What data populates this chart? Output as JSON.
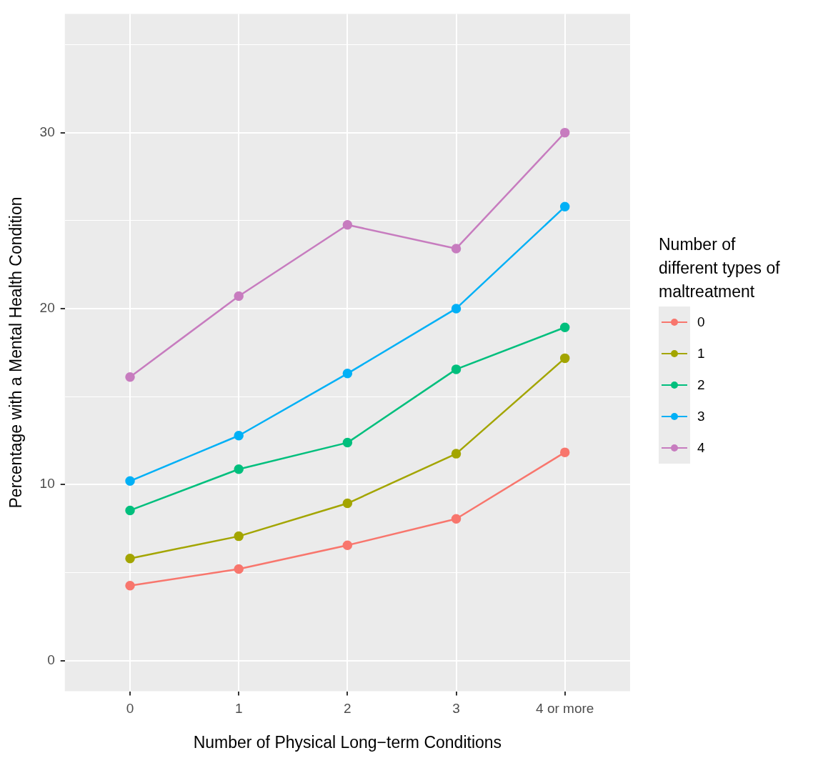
{
  "chart_data": {
    "type": "line",
    "xlabel": "Number of Physical Long−term Conditions",
    "ylabel": "Percentage with a Mental Health Condition",
    "legend_title": "Number of\ndifferent types of\nmaltreatment",
    "categories": [
      "0",
      "1",
      "2",
      "3",
      "4 or more"
    ],
    "series": [
      {
        "name": "0",
        "color": "#f8766d",
        "values": [
          4.25,
          5.2,
          6.55,
          8.05,
          11.83
        ]
      },
      {
        "name": "1",
        "color": "#a3a500",
        "values": [
          5.8,
          7.06,
          8.93,
          11.75,
          17.18
        ]
      },
      {
        "name": "2",
        "color": "#00bf7d",
        "values": [
          8.53,
          10.87,
          12.38,
          16.55,
          18.93
        ]
      },
      {
        "name": "3",
        "color": "#00b0f6",
        "values": [
          10.2,
          12.78,
          16.31,
          20.0,
          25.79
        ]
      },
      {
        "name": "4",
        "color": "#c77cbf",
        "values": [
          16.11,
          20.71,
          24.76,
          23.41,
          30.0
        ]
      }
    ],
    "ylim": [
      -1.75,
      36.75
    ],
    "yticks": [
      0,
      {
        "value": 5,
        "label": null
      },
      10,
      {
        "value": 15,
        "label": null
      },
      20,
      {
        "value": 25,
        "label": null
      },
      30,
      {
        "value": 35,
        "label": null
      }
    ],
    "grid": true,
    "legend": "right",
    "marker": "circle",
    "line_style": "solid"
  }
}
